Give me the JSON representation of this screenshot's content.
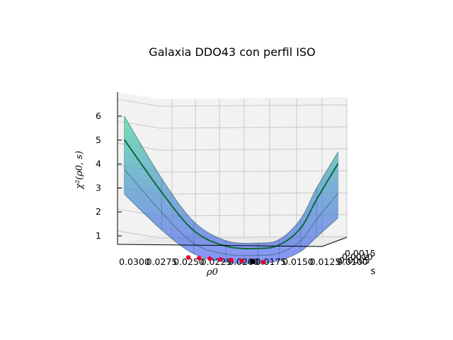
{
  "chart_data": {
    "type": "surface3d",
    "title": "Galaxia DDO43 con perfil ISO",
    "xlabel": "ρ0",
    "ylabel": "s",
    "zlabel": "χ²(ρ0, s)",
    "x_ticks": [
      "0.0300",
      "0.0275",
      "0.0250",
      "0.0225",
      "0.0200",
      "0.0175",
      "0.0150",
      "0.0125",
      "0.0100"
    ],
    "z_ticks": [
      "1",
      "2",
      "3",
      "4",
      "5",
      "6"
    ],
    "y_ticks": [
      "0.0005",
      "0.0010",
      "0.0015"
    ],
    "surface_curves": [
      {
        "name": "",
        "x": [
          0.0295,
          0.026,
          0.023,
          0.02,
          0.017,
          0.015,
          0.013,
          0.0115,
          0.0095
        ],
        "z": [
          6.0,
          3.4,
          1.6,
          0.8,
          0.7,
          0.85,
          1.7,
          3.0,
          4.5
        ]
      },
      {
        "name": "",
        "x": [
          0.0295,
          0.026,
          0.023,
          0.02,
          0.017,
          0.015,
          0.013,
          0.0115,
          0.0095
        ],
        "z": [
          5.2,
          3.0,
          1.4,
          0.75,
          0.65,
          0.8,
          1.5,
          2.7,
          4.2
        ]
      },
      {
        "name": "",
        "x": [
          0.0295,
          0.026,
          0.023,
          0.02,
          0.017,
          0.015,
          0.013,
          0.0115,
          0.0095
        ],
        "z": [
          4.2,
          2.4,
          1.1,
          0.65,
          0.6,
          0.7,
          1.2,
          2.1,
          3.2
        ]
      },
      {
        "name": "",
        "x": [
          0.0295,
          0.026,
          0.023,
          0.02,
          0.017,
          0.015,
          0.013,
          0.0115,
          0.0095
        ],
        "z": [
          3.4,
          1.9,
          0.9,
          0.55,
          0.5,
          0.62,
          1.0,
          1.6,
          2.4
        ]
      }
    ],
    "minimum_path": [
      {
        "x": 0.0235,
        "z": 0.75
      },
      {
        "x": 0.0225,
        "z": 0.72
      },
      {
        "x": 0.0215,
        "z": 0.7
      },
      {
        "x": 0.0205,
        "z": 0.67
      },
      {
        "x": 0.0195,
        "z": 0.64
      },
      {
        "x": 0.0185,
        "z": 0.61
      },
      {
        "x": 0.0175,
        "z": 0.58
      },
      {
        "x": 0.0165,
        "z": 0.55
      }
    ],
    "best_fit": {
      "x": 0.0175,
      "z": 0.58
    },
    "colors": {
      "surface_top": "#5fe0a8",
      "surface_bottom": "#3a4cf0",
      "curve": "#0b6b3a",
      "points": "#e8002a",
      "best_fit": "#000000",
      "pane": "#f2f2f2",
      "grid": "#c8c8c8"
    },
    "grid": true
  }
}
